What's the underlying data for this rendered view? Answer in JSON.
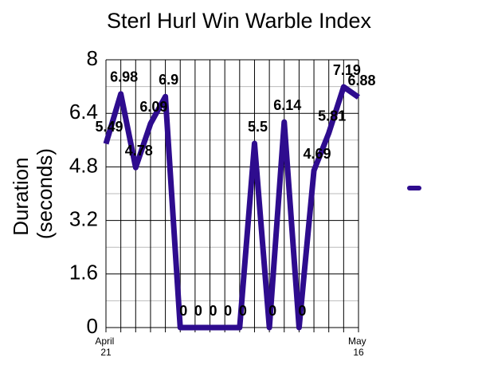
{
  "chart_data": {
    "type": "line",
    "title": "Sterl Hurl Win Warble Index",
    "y_label": "Duration (seconds)",
    "categories": [
      "April 21",
      null,
      null,
      null,
      null,
      null,
      null,
      null,
      null,
      null,
      null,
      null,
      null,
      null,
      null,
      null,
      null,
      "May 16"
    ],
    "series": [
      {
        "color": "#2e0c8e",
        "values": [
          5.49,
          6.98,
          4.78,
          6.09,
          6.9,
          0,
          0,
          0,
          0,
          0,
          5.5,
          0,
          6.14,
          0,
          4.69,
          5.81,
          7.19,
          6.88
        ]
      }
    ],
    "ylim": [
      0,
      8
    ],
    "yticks": [
      0,
      1.6,
      3.2,
      4.8,
      6.4,
      8
    ],
    "grid": true,
    "data_labels": true,
    "legend": "right"
  }
}
